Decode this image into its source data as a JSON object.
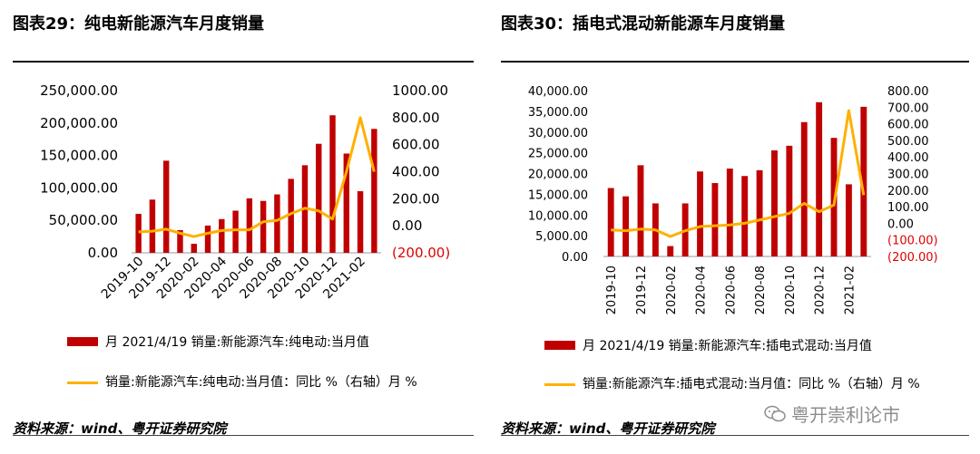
{
  "charts": [
    {
      "title": "图表29：纯电新能源汽车月度销量",
      "legend_bar": "月 2021/4/19 销量:新能源汽车:纯电动:当月值",
      "legend_line": "销量:新能源汽车:纯电动:当月值：同比 %（右轴）月 %",
      "source": "资料来源：wind、粤开证券研究院"
    },
    {
      "title": "图表30：插电式混动新能源车月度销量",
      "legend_bar": "月 2021/4/19 销量:新能源汽车:插电式混动:当月值",
      "legend_line": "销量:新能源汽车:插电式混动:当月值：同比 %（右轴）月 %",
      "source": "资料来源：wind、粤开证券研究院"
    }
  ],
  "watermark": "粤开崇利论市",
  "colors": {
    "bar": "#C00000",
    "line": "#FFB000",
    "negative_tick": "#E00000"
  },
  "chart_data": [
    {
      "type": "bar",
      "categories": [
        "2019-10",
        "2019-11",
        "2019-12",
        "2020-01",
        "2020-02",
        "2020-03",
        "2020-04",
        "2020-05",
        "2020-06",
        "2020-07",
        "2020-08",
        "2020-09",
        "2020-10",
        "2020-11",
        "2020-12",
        "2021-01",
        "2021-02",
        "2021-03"
      ],
      "x_tick_labels": [
        "2019-10",
        "2019-12",
        "2020-02",
        "2020-04",
        "2020-06",
        "2020-08",
        "2020-10",
        "2020-12",
        "2021-02"
      ],
      "series": [
        {
          "name": "月 2021/4/19 销量:新能源汽车:纯电动:当月值",
          "type": "bar",
          "axis": "left",
          "values": [
            60000,
            82000,
            142000,
            35000,
            14000,
            42000,
            52000,
            65000,
            84000,
            80000,
            90000,
            114000,
            135000,
            168000,
            212000,
            153000,
            95000,
            191000
          ]
        },
        {
          "name": "销量:新能源汽车:纯电动:当月值：同比 %（右轴）月 %",
          "type": "line",
          "axis": "right",
          "values": [
            -45,
            -40,
            -25,
            -55,
            -80,
            -55,
            -35,
            -30,
            -30,
            30,
            40,
            90,
            130,
            110,
            50,
            400,
            800,
            400
          ]
        }
      ],
      "y_left": {
        "min": 0,
        "max": 250000,
        "ticks": [
          "250,000.00",
          "200,000.00",
          "150,000.00",
          "100,000.00",
          "50,000.00",
          "0.00"
        ]
      },
      "y_right": {
        "min": -200,
        "max": 1000,
        "ticks": [
          "1000.00",
          "800.00",
          "600.00",
          "400.00",
          "200.00",
          "0.00",
          "(200.00)"
        ]
      }
    },
    {
      "type": "bar",
      "categories": [
        "2019-10",
        "2019-11",
        "2019-12",
        "2020-01",
        "2020-02",
        "2020-03",
        "2020-04",
        "2020-05",
        "2020-06",
        "2020-07",
        "2020-08",
        "2020-09",
        "2020-10",
        "2020-11",
        "2020-12",
        "2021-01",
        "2021-02",
        "2021-03"
      ],
      "x_tick_labels": [
        "2019-10",
        "2019-12",
        "2020-02",
        "2020-04",
        "2020-06",
        "2020-08",
        "2020-10",
        "2020-12",
        "2021-02"
      ],
      "series": [
        {
          "name": "月 2021/4/19 销量:新能源汽车:插电式混动:当月值",
          "type": "bar",
          "axis": "left",
          "values": [
            16500,
            14500,
            22000,
            12800,
            2500,
            12800,
            20500,
            17700,
            21200,
            19400,
            20800,
            25600,
            26700,
            32400,
            37200,
            28600,
            17400,
            36100
          ]
        },
        {
          "name": "销量:新能源汽车:插电式混动:当月值：同比 %（右轴）月 %",
          "type": "line",
          "axis": "right",
          "values": [
            -40,
            -45,
            -35,
            -40,
            -80,
            -45,
            -20,
            -15,
            -10,
            0,
            20,
            40,
            60,
            120,
            70,
            110,
            680,
            170
          ]
        }
      ],
      "y_left": {
        "min": 0,
        "max": 40000,
        "ticks": [
          "40,000.00",
          "35,000.00",
          "30,000.00",
          "25,000.00",
          "20,000.00",
          "15,000.00",
          "10,000.00",
          "5,000.00",
          "0.00"
        ]
      },
      "y_right": {
        "min": -200,
        "max": 800,
        "ticks": [
          "800.00",
          "700.00",
          "600.00",
          "500.00",
          "400.00",
          "300.00",
          "200.00",
          "100.00",
          "0.00",
          "(100.00)",
          "(200.00)"
        ]
      }
    }
  ]
}
